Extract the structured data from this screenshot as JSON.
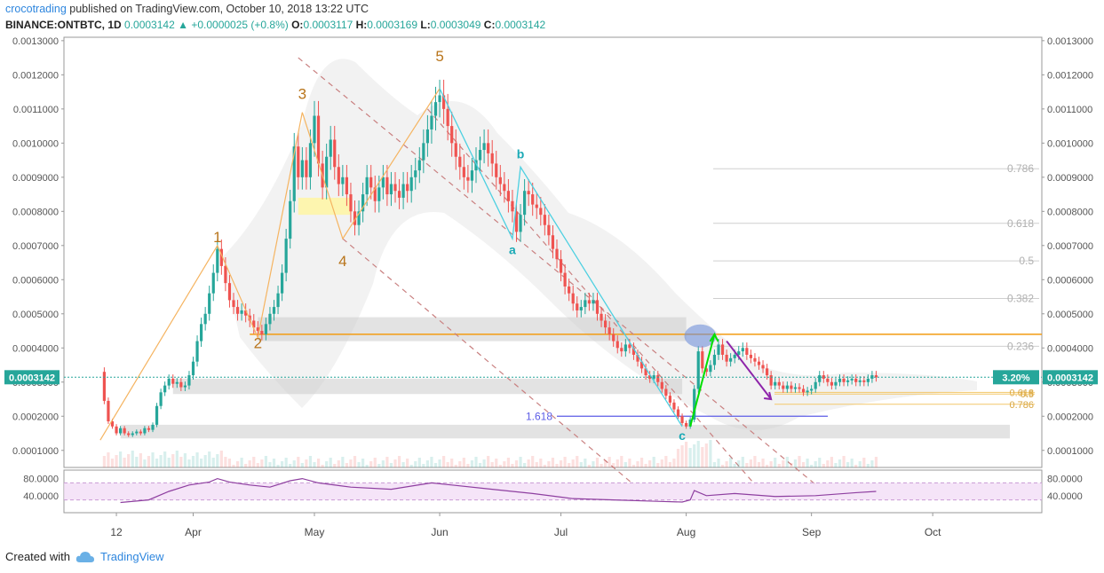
{
  "header": {
    "author": "crocotrading",
    "published_text": "published on TradingView.com, October 10, 2018 13:22 UTC",
    "symbol": "BINANCE:ONTBTC, 1D",
    "last": "0.0003142",
    "change": "+0.0000025 (+0.8%)",
    "o_label": "O:",
    "o": "0.0003117",
    "h_label": "H:",
    "h": "0.0003169",
    "l_label": "L:",
    "l": "0.0003049",
    "c_label": "C:",
    "c": "0.0003142"
  },
  "footer": {
    "created_with": "Created with",
    "brand": "TradingView"
  },
  "colors": {
    "up": "#26a69a",
    "down": "#ef5350",
    "price_line": "#26a69a",
    "orange": "#f39c12",
    "rsi_line": "#8e3fa0",
    "rsi_band": "#f1d9f5",
    "cyan": "#4dd0e1",
    "purple_arrow": "#8e24aa",
    "green_arrow": "#00e000"
  },
  "chart_data": {
    "type": "candlestick",
    "title": "BINANCE:ONTBTC, 1D",
    "ylim": [
      5e-05,
      0.00131
    ],
    "y_ticks": [
      "0.0001000",
      "0.0002000",
      "0.0003000",
      "0.0004000",
      "0.0005000",
      "0.0006000",
      "0.0007000",
      "0.0008000",
      "0.0009000",
      "0.0010000",
      "0.0011000",
      "0.0012000",
      "0.0013000"
    ],
    "x_tick_labels": [
      "12",
      "Apr",
      "May",
      "Jun",
      "Jul",
      "Aug",
      "Sep",
      "Oct"
    ],
    "x_tick_days": [
      12,
      31,
      61,
      92,
      122,
      153,
      184,
      214
    ],
    "last_price_label": "0.0003142",
    "change_badge": "3.20%",
    "close_series": [
      [
        8,
        0.00033
      ],
      [
        9,
        0.000245
      ],
      [
        10,
        0.000185
      ],
      [
        11,
        0.00017
      ],
      [
        12,
        0.00015
      ],
      [
        13,
        0.000165
      ],
      [
        14,
        0.00015
      ],
      [
        15,
        0.000145
      ],
      [
        16,
        0.00015
      ],
      [
        17,
        0.000155
      ],
      [
        18,
        0.00015
      ],
      [
        19,
        0.000165
      ],
      [
        20,
        0.00016
      ],
      [
        21,
        0.000175
      ],
      [
        22,
        0.00023
      ],
      [
        23,
        0.00027
      ],
      [
        24,
        0.00029
      ],
      [
        25,
        0.00031
      ],
      [
        26,
        0.000295
      ],
      [
        27,
        0.0003
      ],
      [
        28,
        0.000285
      ],
      [
        29,
        0.00029
      ],
      [
        30,
        0.00032
      ],
      [
        31,
        0.00036
      ],
      [
        32,
        0.00042
      ],
      [
        33,
        0.00047
      ],
      [
        34,
        0.0005
      ],
      [
        35,
        0.00056
      ],
      [
        36,
        0.00062
      ],
      [
        37,
        0.00069
      ],
      [
        38,
        0.00064
      ],
      [
        39,
        0.00059
      ],
      [
        40,
        0.00054
      ],
      [
        41,
        0.00052
      ],
      [
        42,
        0.0005
      ],
      [
        43,
        0.00051
      ],
      [
        44,
        0.000495
      ],
      [
        45,
        0.00048
      ],
      [
        46,
        0.00046
      ],
      [
        47,
        0.00045
      ],
      [
        48,
        0.00044
      ],
      [
        49,
        0.00047
      ],
      [
        50,
        0.0005
      ],
      [
        51,
        0.00052
      ],
      [
        52,
        0.00056
      ],
      [
        53,
        0.00062
      ],
      [
        54,
        0.00072
      ],
      [
        55,
        0.00083
      ],
      [
        56,
        0.00099
      ],
      [
        57,
        0.0009
      ],
      [
        58,
        0.00095
      ],
      [
        59,
        0.0009
      ],
      [
        60,
        0.001
      ],
      [
        61,
        0.00108
      ],
      [
        62,
        0.00094
      ],
      [
        63,
        0.00087
      ],
      [
        64,
        0.00096
      ],
      [
        65,
        0.00101
      ],
      [
        66,
        0.00093
      ],
      [
        67,
        0.00088
      ],
      [
        68,
        0.0009
      ],
      [
        69,
        0.00085
      ],
      [
        70,
        0.0008
      ],
      [
        71,
        0.00076
      ],
      [
        72,
        0.0008
      ],
      [
        73,
        0.00085
      ],
      [
        74,
        0.0009
      ],
      [
        75,
        0.00087
      ],
      [
        76,
        0.00083
      ],
      [
        77,
        0.00087
      ],
      [
        78,
        0.0009
      ],
      [
        79,
        0.00085
      ],
      [
        80,
        0.00088
      ],
      [
        81,
        0.00086
      ],
      [
        82,
        0.00084
      ],
      [
        83,
        0.00088
      ],
      [
        84,
        0.00086
      ],
      [
        85,
        0.0009
      ],
      [
        86,
        0.00092
      ],
      [
        87,
        0.00095
      ],
      [
        88,
        0.001
      ],
      [
        89,
        0.00104
      ],
      [
        90,
        0.00108
      ],
      [
        91,
        0.00112
      ],
      [
        92,
        0.00114
      ],
      [
        93,
        0.0011
      ],
      [
        94,
        0.00105
      ],
      [
        95,
        0.001
      ],
      [
        96,
        0.00096
      ],
      [
        97,
        0.00093
      ],
      [
        98,
        0.0009
      ],
      [
        99,
        0.00089
      ],
      [
        100,
        0.00092
      ],
      [
        101,
        0.00095
      ],
      [
        102,
        0.00098
      ],
      [
        103,
        0.001
      ],
      [
        104,
        0.00097
      ],
      [
        105,
        0.00094
      ],
      [
        106,
        0.0009
      ],
      [
        107,
        0.00088
      ],
      [
        108,
        0.00086
      ],
      [
        109,
        0.00083
      ],
      [
        110,
        0.0008
      ],
      [
        111,
        0.00074
      ],
      [
        112,
        0.00079
      ],
      [
        113,
        0.00086
      ],
      [
        114,
        0.00085
      ],
      [
        115,
        0.00082
      ],
      [
        116,
        0.00081
      ],
      [
        117,
        0.00079
      ],
      [
        118,
        0.00076
      ],
      [
        119,
        0.00073
      ],
      [
        120,
        0.00069
      ],
      [
        121,
        0.00066
      ],
      [
        122,
        0.00062
      ],
      [
        123,
        0.00058
      ],
      [
        124,
        0.00056
      ],
      [
        125,
        0.00053
      ],
      [
        126,
        0.00051
      ],
      [
        127,
        0.00052
      ],
      [
        128,
        0.00054
      ],
      [
        129,
        0.00053
      ],
      [
        130,
        0.00054
      ],
      [
        131,
        0.0005
      ],
      [
        132,
        0.00048
      ],
      [
        133,
        0.00046
      ],
      [
        134,
        0.00044
      ],
      [
        135,
        0.00042
      ],
      [
        136,
        0.0004
      ],
      [
        137,
        0.00039
      ],
      [
        138,
        0.00041
      ],
      [
        139,
        0.0004
      ],
      [
        140,
        0.00038
      ],
      [
        141,
        0.00036
      ],
      [
        142,
        0.00034
      ],
      [
        143,
        0.00032
      ],
      [
        144,
        0.00031
      ],
      [
        145,
        0.00032
      ],
      [
        146,
        0.0003
      ],
      [
        147,
        0.00028
      ],
      [
        148,
        0.00026
      ],
      [
        149,
        0.00024
      ],
      [
        150,
        0.00022
      ],
      [
        151,
        0.0002
      ],
      [
        152,
        0.00018
      ],
      [
        153,
        0.00017
      ],
      [
        154,
        0.00019
      ],
      [
        155,
        0.00028
      ],
      [
        156,
        0.00039
      ],
      [
        157,
        0.00034
      ],
      [
        158,
        0.00033
      ],
      [
        159,
        0.00035
      ],
      [
        160,
        0.00038
      ],
      [
        161,
        0.00041
      ],
      [
        162,
        0.00038
      ],
      [
        163,
        0.00036
      ],
      [
        164,
        0.00037
      ],
      [
        165,
        0.00038
      ],
      [
        166,
        0.00039
      ],
      [
        167,
        0.0004
      ],
      [
        168,
        0.00038
      ],
      [
        169,
        0.00037
      ],
      [
        170,
        0.00036
      ],
      [
        171,
        0.00035
      ],
      [
        172,
        0.00034
      ],
      [
        173,
        0.00032
      ],
      [
        174,
        0.00029
      ],
      [
        175,
        0.0003
      ],
      [
        176,
        0.00029
      ],
      [
        177,
        0.00028
      ],
      [
        178,
        0.00029
      ],
      [
        179,
        0.00028
      ],
      [
        180,
        0.000285
      ],
      [
        181,
        0.00028
      ],
      [
        182,
        0.00027
      ],
      [
        183,
        0.000275
      ],
      [
        184,
        0.00028
      ],
      [
        185,
        0.0003
      ],
      [
        186,
        0.00032
      ],
      [
        187,
        0.00031
      ],
      [
        188,
        0.0003
      ],
      [
        189,
        0.00029
      ],
      [
        190,
        0.0003
      ],
      [
        191,
        0.00031
      ],
      [
        192,
        0.0003
      ],
      [
        193,
        0.000305
      ],
      [
        194,
        0.00031
      ],
      [
        195,
        0.0003
      ],
      [
        196,
        0.000305
      ],
      [
        197,
        0.0003
      ],
      [
        198,
        0.00031
      ],
      [
        199,
        0.00032
      ],
      [
        200,
        0.000314
      ]
    ],
    "rsi": {
      "ylim": [
        0,
        100
      ],
      "ticks": [
        "80.0000",
        "40.0000"
      ],
      "overbought": 70,
      "oversold": 30,
      "values": [
        [
          13,
          24
        ],
        [
          20,
          30
        ],
        [
          25,
          50
        ],
        [
          30,
          65
        ],
        [
          35,
          72
        ],
        [
          37,
          80
        ],
        [
          40,
          72
        ],
        [
          45,
          65
        ],
        [
          50,
          60
        ],
        [
          55,
          75
        ],
        [
          58,
          80
        ],
        [
          62,
          70
        ],
        [
          70,
          60
        ],
        [
          80,
          55
        ],
        [
          90,
          70
        ],
        [
          95,
          65
        ],
        [
          105,
          55
        ],
        [
          115,
          45
        ],
        [
          125,
          33
        ],
        [
          135,
          30
        ],
        [
          145,
          27
        ],
        [
          152,
          25
        ],
        [
          154,
          30
        ],
        [
          155,
          52
        ],
        [
          158,
          40
        ],
        [
          165,
          45
        ],
        [
          175,
          38
        ],
        [
          185,
          40
        ],
        [
          195,
          47
        ],
        [
          200,
          50
        ]
      ]
    },
    "elliott_labels": [
      {
        "text": "1",
        "day": 37,
        "price": 0.00071
      },
      {
        "text": "2",
        "day": 47,
        "price": 0.0004
      },
      {
        "text": "3",
        "day": 58,
        "price": 0.00113
      },
      {
        "text": "4",
        "day": 68,
        "price": 0.00064
      },
      {
        "text": "5",
        "day": 92,
        "price": 0.00124
      },
      {
        "text": "a",
        "day": 110,
        "price": 0.000675
      },
      {
        "text": "b",
        "day": 112,
        "price": 0.000955
      },
      {
        "text": "c",
        "day": 152,
        "price": 0.00013
      }
    ],
    "fib_levels": [
      {
        "label": "0.786",
        "price": 0.000925
      },
      {
        "label": "0.618",
        "price": 0.000765
      },
      {
        "label": "0.5",
        "price": 0.000655
      },
      {
        "label": "0.382",
        "price": 0.000545
      },
      {
        "label": "0.236",
        "price": 0.000405
      }
    ],
    "fib_small_levels": [
      {
        "label": "0.618",
        "price": 0.00027
      },
      {
        "label": "0.5",
        "price": 0.000265
      },
      {
        "label": "0.786",
        "price": 0.000235
      }
    ],
    "extension_label": "1.618",
    "extension_price": 0.0002,
    "resistance_price": 0.00044
  }
}
